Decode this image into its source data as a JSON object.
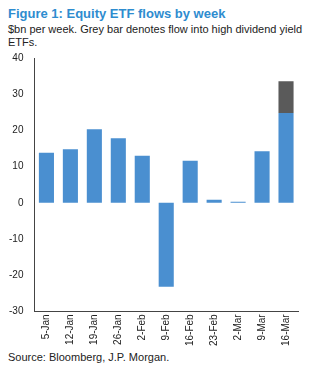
{
  "chart_data": {
    "type": "bar",
    "title": "Figure 1: Equity ETF flows by week",
    "subtitle": "$bn per week. Grey bar denotes flow into high dividend yield ETFs.",
    "source": "Source: Bloomberg, J.P. Morgan.",
    "categories": [
      "5-Jan",
      "12-Jan",
      "19-Jan",
      "26-Jan",
      "2-Feb",
      "9-Feb",
      "16-Feb",
      "23-Feb",
      "2-Mar",
      "9-Mar",
      "16-Mar"
    ],
    "series": [
      {
        "color": "#4a8fd0",
        "values": [
          13.8,
          14.8,
          20.3,
          17.8,
          13.0,
          -23.2,
          11.6,
          0.8,
          0.3,
          14.2,
          24.8
        ]
      },
      {
        "color": "#5a5a5a",
        "values": [
          null,
          null,
          null,
          null,
          null,
          null,
          null,
          null,
          null,
          null,
          8.8
        ]
      }
    ],
    "stacked": true,
    "ylim": [
      -30,
      40
    ],
    "yticks": [
      -30,
      -20,
      -10,
      0,
      10,
      20,
      30,
      40
    ],
    "grid": false
  }
}
